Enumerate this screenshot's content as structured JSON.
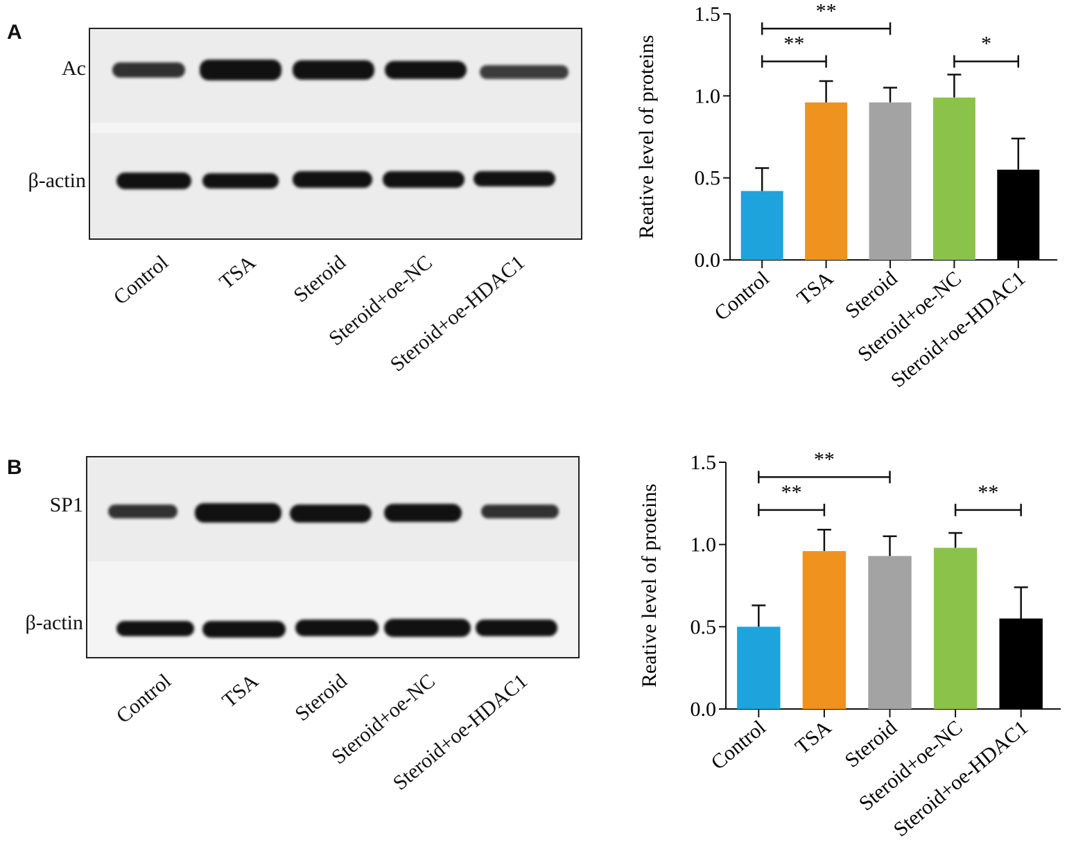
{
  "panels": [
    {
      "letter": "A",
      "blot": {
        "target_label": "Ac",
        "control_label": "β-actin",
        "lanes": [
          "Control",
          "TSA",
          "Steroid",
          "Steroid+oe-NC",
          "Steroid+oe-HDAC1"
        ]
      }
    },
    {
      "letter": "B",
      "blot": {
        "target_label": "SP1",
        "control_label": "β-actin",
        "lanes": [
          "Control",
          "TSA",
          "Steroid",
          "Steroid+oe-NC",
          "Steroid+oe-HDAC1"
        ]
      }
    }
  ],
  "chart_data": [
    {
      "type": "bar",
      "title": "",
      "ylabel": "Reative level of proteins",
      "xlabel": "",
      "ylim": [
        0,
        1.5
      ],
      "yticks": [
        "0.0",
        "0.5",
        "1.0",
        "1.5"
      ],
      "categories": [
        "Control",
        "TSA",
        "Steroid",
        "Steroid+oe-NC",
        "Steroid+oe-HDAC1"
      ],
      "values": [
        0.42,
        0.96,
        0.96,
        0.99,
        0.55
      ],
      "errors": [
        0.14,
        0.13,
        0.09,
        0.14,
        0.19
      ],
      "colors": [
        "#1fa3dc",
        "#f0921e",
        "#a3a3a3",
        "#8bc34a",
        "#000000"
      ],
      "significance": [
        {
          "from": 0,
          "to": 1,
          "label": "**"
        },
        {
          "from": 0,
          "to": 2,
          "label": "**"
        },
        {
          "from": 3,
          "to": 4,
          "label": "*"
        }
      ]
    },
    {
      "type": "bar",
      "title": "",
      "ylabel": "Reative level of proteins",
      "xlabel": "",
      "ylim": [
        0,
        1.5
      ],
      "yticks": [
        "0.0",
        "0.5",
        "1.0",
        "1.5"
      ],
      "categories": [
        "Control",
        "TSA",
        "Steroid",
        "Steroid+oe-NC",
        "Steroid+oe-HDAC1"
      ],
      "values": [
        0.5,
        0.96,
        0.93,
        0.98,
        0.55
      ],
      "errors": [
        0.13,
        0.13,
        0.12,
        0.09,
        0.19
      ],
      "colors": [
        "#1fa3dc",
        "#f0921e",
        "#a3a3a3",
        "#8bc34a",
        "#000000"
      ],
      "significance": [
        {
          "from": 0,
          "to": 1,
          "label": "**"
        },
        {
          "from": 0,
          "to": 2,
          "label": "**"
        },
        {
          "from": 3,
          "to": 4,
          "label": "**"
        }
      ]
    }
  ]
}
